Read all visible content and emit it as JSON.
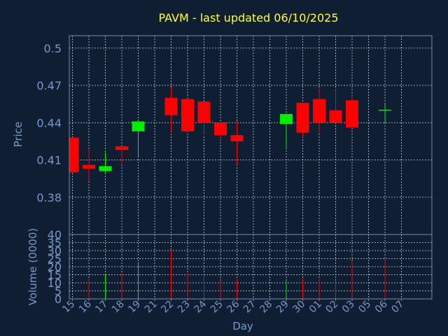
{
  "title": "PAVM - last updated 06/10/2025",
  "chart_data": [
    {
      "type": "candlestick",
      "ylabel": "Price",
      "ylim": [
        0.35,
        0.51
      ],
      "yticks": [
        "0.38",
        "0.41",
        "0.44",
        "0.47",
        "0.5"
      ],
      "grid": true,
      "colors": {
        "up": "#00ee00",
        "down": "#ff0000"
      },
      "x": [
        "15",
        "16",
        "17",
        "18",
        "19",
        "21",
        "22",
        "23",
        "24",
        "25",
        "26",
        "27",
        "28",
        "29",
        "30",
        "01",
        "02",
        "03",
        "05",
        "06",
        "07"
      ],
      "candles": [
        {
          "day": "15",
          "open": 0.428,
          "high": 0.428,
          "low": 0.4,
          "close": 0.4
        },
        {
          "day": "16",
          "open": 0.406,
          "high": 0.418,
          "low": 0.393,
          "close": 0.403
        },
        {
          "day": "17",
          "open": 0.401,
          "high": 0.416,
          "low": 0.399,
          "close": 0.405
        },
        {
          "day": "18",
          "open": 0.421,
          "high": 0.421,
          "low": 0.406,
          "close": 0.418
        },
        {
          "day": "19",
          "open": 0.433,
          "high": 0.441,
          "low": 0.413,
          "close": 0.441
        },
        {
          "day": "22",
          "open": 0.46,
          "high": 0.468,
          "low": 0.433,
          "close": 0.446
        },
        {
          "day": "23",
          "open": 0.459,
          "high": 0.459,
          "low": 0.432,
          "close": 0.433
        },
        {
          "day": "24",
          "open": 0.457,
          "high": 0.457,
          "low": 0.43,
          "close": 0.44
        },
        {
          "day": "25",
          "open": 0.44,
          "high": 0.44,
          "low": 0.426,
          "close": 0.43
        },
        {
          "day": "26",
          "open": 0.43,
          "high": 0.441,
          "low": 0.406,
          "close": 0.425
        },
        {
          "day": "29",
          "open": 0.439,
          "high": 0.447,
          "low": 0.42,
          "close": 0.447
        },
        {
          "day": "30",
          "open": 0.456,
          "high": 0.456,
          "low": 0.428,
          "close": 0.432
        },
        {
          "day": "01",
          "open": 0.459,
          "high": 0.467,
          "low": 0.431,
          "close": 0.44
        },
        {
          "day": "02",
          "open": 0.45,
          "high": 0.467,
          "low": 0.44,
          "close": 0.44
        },
        {
          "day": "03",
          "open": 0.458,
          "high": 0.462,
          "low": 0.436,
          "close": 0.436
        },
        {
          "day": "06",
          "open": 0.45,
          "high": 0.455,
          "low": 0.44,
          "close": 0.45
        }
      ]
    },
    {
      "type": "bar",
      "ylabel": "Volume (0000)",
      "xlabel": "Day",
      "ylim": [
        0,
        40
      ],
      "yticks": [
        "0",
        "5",
        "10",
        "15",
        "20",
        "25",
        "30",
        "35",
        "40"
      ],
      "grid": true,
      "volumes": [
        {
          "day": "16",
          "value": 12,
          "color": "#ff0000"
        },
        {
          "day": "17",
          "value": 15,
          "color": "#00ee00"
        },
        {
          "day": "18",
          "value": 16,
          "color": "#ff0000"
        },
        {
          "day": "19",
          "value": 22,
          "color": "#00ee00"
        },
        {
          "day": "22",
          "value": 30,
          "color": "#ff0000"
        },
        {
          "day": "23",
          "value": 16,
          "color": "#ff0000"
        },
        {
          "day": "24",
          "value": 15,
          "color": "#ff0000"
        },
        {
          "day": "25",
          "value": 11,
          "color": "#ff0000"
        },
        {
          "day": "26",
          "value": 12,
          "color": "#ff0000"
        },
        {
          "day": "29",
          "value": 11,
          "color": "#00ee00"
        },
        {
          "day": "30",
          "value": 12,
          "color": "#ff0000"
        },
        {
          "day": "01",
          "value": 12,
          "color": "#ff0000"
        },
        {
          "day": "02",
          "value": 10,
          "color": "#ff0000"
        },
        {
          "day": "03",
          "value": 23,
          "color": "#ff0000"
        },
        {
          "day": "06",
          "value": 24,
          "color": "#ff0000"
        }
      ]
    }
  ]
}
